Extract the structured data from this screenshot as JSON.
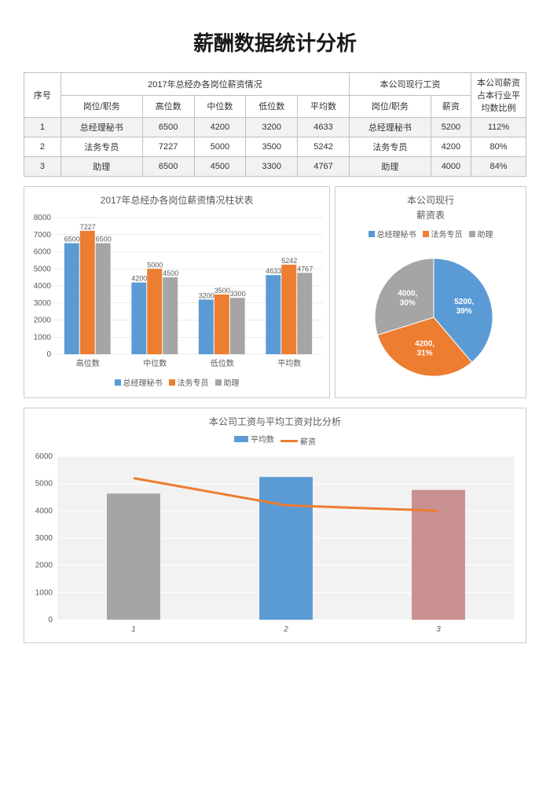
{
  "title": "薪酬数据统计分析",
  "table": {
    "seq_header": "序号",
    "group1_header": "2017年总经办各岗位薪资情况",
    "group2_header": "本公司现行工资",
    "ratio_header": "本公司薪资占本行业平均数比例",
    "sub_headers_g1": [
      "岗位/职务",
      "高位数",
      "中位数",
      "低位数",
      "平均数"
    ],
    "sub_headers_g2": [
      "岗位/职务",
      "薪资"
    ],
    "rows": [
      {
        "seq": "1",
        "g1": [
          "总经理秘书",
          "6500",
          "4200",
          "3200",
          "4633"
        ],
        "g2": [
          "总经理秘书",
          "5200"
        ],
        "ratio": "112%"
      },
      {
        "seq": "2",
        "g1": [
          "法务专员",
          "7227",
          "5000",
          "3500",
          "5242"
        ],
        "g2": [
          "法务专员",
          "4200"
        ],
        "ratio": "80%"
      },
      {
        "seq": "3",
        "g1": [
          "助理",
          "6500",
          "4500",
          "3300",
          "4767"
        ],
        "g2": [
          "助理",
          "4000"
        ],
        "ratio": "84%"
      }
    ]
  },
  "bar_chart": {
    "title": "2017年总经办各岗位薪资情况柱状表",
    "categories": [
      "高位数",
      "中位数",
      "低位数",
      "平均数"
    ],
    "series": [
      {
        "name": "总经理秘书",
        "color": "#5b9bd5",
        "values": [
          6500,
          4200,
          3200,
          4633
        ]
      },
      {
        "name": "法务专员",
        "color": "#ed7d31",
        "values": [
          7227,
          5000,
          3500,
          5242
        ]
      },
      {
        "name": "助理",
        "color": "#a5a5a5",
        "values": [
          6500,
          4500,
          3300,
          4767
        ]
      }
    ],
    "ylim": [
      0,
      8000
    ],
    "ytick_step": 1000,
    "grid_color": "#d9d9d9",
    "background": "#ffffff",
    "label_fontsize": 9
  },
  "pie_chart": {
    "title": "本公司现行",
    "subtitle": "薪资表",
    "slices": [
      {
        "name": "总经理秘书",
        "value": 5200,
        "color": "#5b9bd5",
        "label": "5200, 39%"
      },
      {
        "name": "法务专员",
        "value": 4200,
        "color": "#ed7d31",
        "label": "4200, 31%"
      },
      {
        "name": "助理",
        "value": 4000,
        "color": "#a5a5a5",
        "label": "4000, 30%"
      }
    ]
  },
  "combo_chart": {
    "title": "本公司工资与平均工资对比分析",
    "categories": [
      "1",
      "2",
      "3"
    ],
    "bar_series": {
      "name": "平均数",
      "color_default": "#a5a5a5",
      "values": [
        4633,
        5242,
        4767
      ],
      "colors": [
        "#a5a5a5",
        "#5b9bd5",
        "#c89090"
      ]
    },
    "line_series": {
      "name": "薪资",
      "color": "#ed7d31",
      "values": [
        5200,
        4200,
        4000
      ]
    },
    "ylim": [
      0,
      6000
    ],
    "ytick_step": 1000,
    "plot_background": "#f2f2f2",
    "grid_color": "#ffffff"
  }
}
